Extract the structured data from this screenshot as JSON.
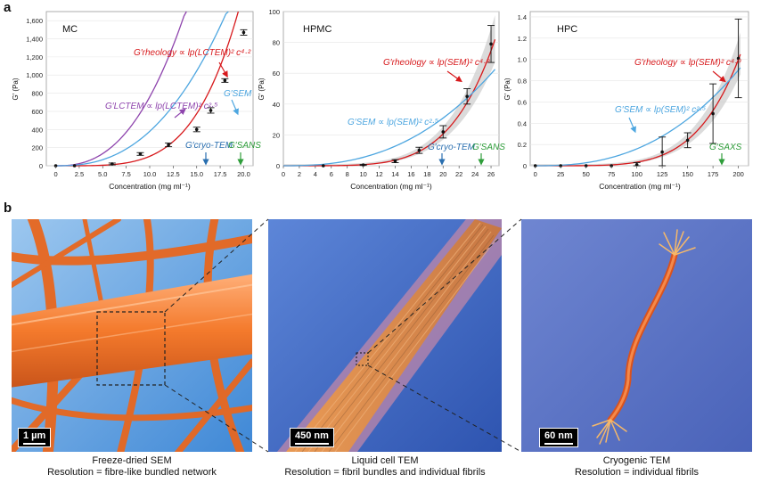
{
  "panel_a_label": "a",
  "panel_b_label": "b",
  "chart_data": [
    {
      "type": "scatter",
      "title": "MC",
      "xlabel": "Concentration (mg ml⁻¹)",
      "ylabel": "G′ (Pa)",
      "xlim": [
        -1,
        21
      ],
      "ylim": [
        0,
        1700
      ],
      "xticks": [
        0,
        2.5,
        5,
        7.5,
        10,
        12.5,
        15,
        17.5,
        20
      ],
      "xtick_labels": [
        "0",
        "2.5",
        "5.0",
        "7.5",
        "10.0",
        "12.5",
        "15.0",
        "17.5",
        "20.0"
      ],
      "yticks": [
        0,
        200,
        400,
        600,
        800,
        1000,
        1200,
        1400,
        1600
      ],
      "ytick_labels": [
        "0",
        "200",
        "400",
        "600",
        "800",
        "1,000",
        "1,200",
        "1,400",
        "1,600"
      ],
      "points": {
        "x": [
          0,
          2,
          6,
          9,
          12,
          15,
          16.5,
          18,
          20
        ],
        "y": [
          0,
          0,
          20,
          130,
          230,
          400,
          610,
          940,
          1470
        ],
        "err": [
          0,
          0,
          10,
          15,
          20,
          25,
          30,
          20,
          30
        ]
      },
      "fits": [
        {
          "name": "rheology",
          "color": "#d7191c",
          "coef": 0.0066,
          "exp": 4.2,
          "x_end": 21
        },
        {
          "name": "LCTEM",
          "color": "#8e44ad",
          "coef": 2.4,
          "exp": 2.5,
          "x_end": 21
        },
        {
          "name": "SEM",
          "color": "#4da6e0",
          "coef": 1.2,
          "exp": 2.5,
          "x_end": 21
        }
      ],
      "annotations": [
        {
          "text": "G′rheology ∝ lp(LCTEM)² c⁴·²",
          "color": "#d7191c"
        },
        {
          "text": "G′LCTEM ∝ lp(LCTEM)² c²·⁵",
          "color": "#8e44ad"
        },
        {
          "text": "G′SEM",
          "color": "#4da6e0"
        },
        {
          "text": "G′cryo-TEM",
          "color": "#2a6fb0"
        },
        {
          "text": "G′SANS",
          "color": "#2e9d3a"
        }
      ]
    },
    {
      "type": "scatter",
      "title": "HPMC",
      "xlabel": "Concentration (mg ml⁻¹)",
      "ylabel": "G′ (Pa)",
      "xlim": [
        0,
        27
      ],
      "ylim": [
        0,
        100
      ],
      "xticks": [
        0,
        2,
        4,
        6,
        8,
        10,
        12,
        14,
        16,
        18,
        20,
        22,
        24,
        26
      ],
      "xtick_labels": [
        "0",
        "2",
        "4",
        "6",
        "8",
        "10",
        "12",
        "14",
        "16",
        "18",
        "20",
        "22",
        "24",
        "26"
      ],
      "yticks": [
        0,
        20,
        40,
        60,
        80,
        100
      ],
      "ytick_labels": [
        "0",
        "20",
        "40",
        "60",
        "80",
        "100"
      ],
      "points": {
        "x": [
          5,
          10,
          14,
          17,
          20,
          23,
          26
        ],
        "y": [
          0,
          0.5,
          3,
          10,
          22,
          45,
          79
        ],
        "err": [
          0,
          0.3,
          1,
          2,
          4,
          5,
          12
        ]
      },
      "fits": [
        {
          "name": "rheology",
          "color": "#d7191c",
          "coef": 8.7e-06,
          "exp": 4.9,
          "x_end": 26.5
        },
        {
          "name": "SEM",
          "color": "#4da6e0",
          "coef": 0.0173,
          "exp": 2.5,
          "x_end": 26.5
        }
      ],
      "annotations": [
        {
          "text": "G′rheology ∝ lp(SEM)² c⁴·⁹",
          "color": "#d7191c"
        },
        {
          "text": "G′SEM ∝ lp(SEM)² c²·⁵",
          "color": "#4da6e0"
        },
        {
          "text": "G′cryo-TEM",
          "color": "#2a6fb0"
        },
        {
          "text": "G′SANS",
          "color": "#2e9d3a"
        }
      ]
    },
    {
      "type": "scatter",
      "title": "HPC",
      "xlabel": "Concentration (mg ml⁻¹)",
      "ylabel": "G′ (Pa)",
      "xlim": [
        -5,
        210
      ],
      "ylim": [
        0,
        1.45
      ],
      "xticks": [
        0,
        25,
        50,
        75,
        100,
        125,
        150,
        175,
        200
      ],
      "xtick_labels": [
        "0",
        "25",
        "50",
        "75",
        "100",
        "125",
        "150",
        "175",
        "200"
      ],
      "yticks": [
        0,
        0.2,
        0.4,
        0.6,
        0.8,
        1.0,
        1.2,
        1.4
      ],
      "ytick_labels": [
        "0",
        "0.2",
        "0.4",
        "0.6",
        "0.8",
        "1.0",
        "1.2",
        "1.4"
      ],
      "points": {
        "x": [
          0,
          25,
          50,
          75,
          100,
          125,
          150,
          175,
          200
        ],
        "y": [
          0,
          0,
          0,
          0,
          0.01,
          0.13,
          0.24,
          0.49,
          1.01
        ],
        "err": [
          0,
          0,
          0,
          0,
          0.02,
          0.14,
          0.07,
          0.28,
          0.37
        ]
      },
      "fits": [
        {
          "name": "rheology",
          "color": "#d7191c",
          "coef": 5.3e-12,
          "exp": 4.9,
          "x_end": 202
        },
        {
          "name": "SEM",
          "color": "#4da6e0",
          "coef": 1.59e-06,
          "exp": 2.5,
          "x_end": 202
        }
      ],
      "annotations": [
        {
          "text": "G′rheology ∝ lp(SEM)² c⁴·⁹",
          "color": "#d7191c"
        },
        {
          "text": "G′SEM ∝ lp(SEM)² c²·⁵",
          "color": "#4da6e0"
        },
        {
          "text": "G′SAXS",
          "color": "#2e9d3a"
        }
      ]
    }
  ],
  "images": [
    {
      "scale": "1 µm",
      "caption_1": "Freeze-dried SEM",
      "caption_2": "Resolution = fibre-like bundled network"
    },
    {
      "scale": "450 nm",
      "caption_1": "Liquid cell TEM",
      "caption_2": "Resolution = fibril bundles and individual fibrils"
    },
    {
      "scale": "60 nm",
      "caption_1": "Cryogenic TEM",
      "caption_2": "Resolution = individual fibrils"
    }
  ],
  "colors": {
    "red": "#d7191c",
    "purple": "#8e44ad",
    "blue": "#4da6e0",
    "green": "#2e9d3a",
    "fibre": "#f47a2c"
  }
}
